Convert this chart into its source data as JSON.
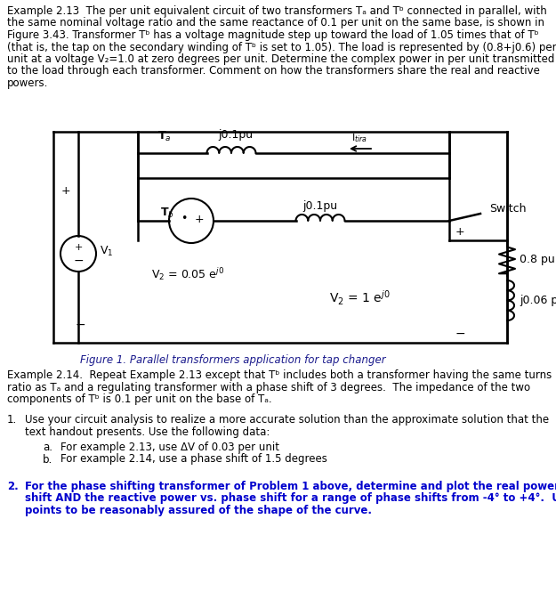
{
  "background_color": "#ffffff",
  "text_color": "#000000",
  "bold_color": "#0000cd",
  "fig_caption": "Figure 1. Parallel transformers application for tap changer",
  "problem1a": "For example 2.13, use ΔV of 0.03 per unit",
  "problem1b": "For example 2.14, use a phase shift of 1.5 degrees"
}
